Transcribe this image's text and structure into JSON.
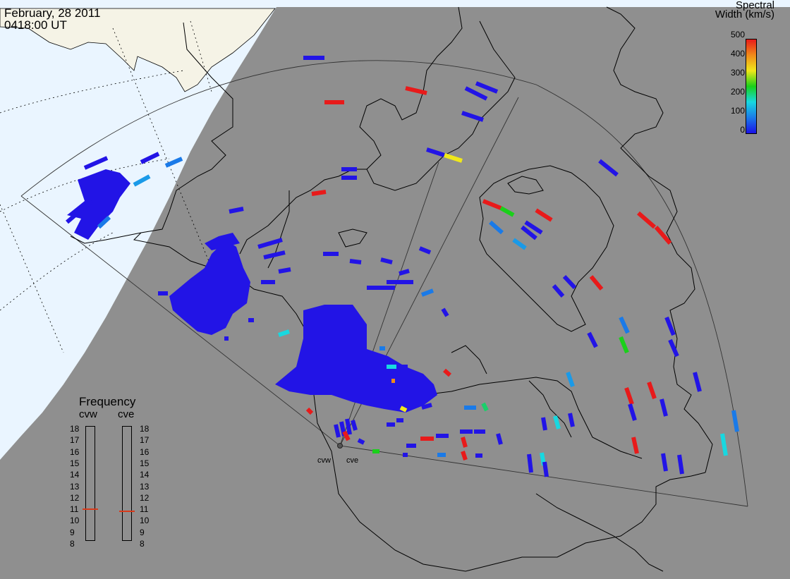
{
  "header": {
    "date": "February, 28 2011",
    "time": "0418:00 UT"
  },
  "colorbar": {
    "title_line1": "Spectral",
    "title_line2": "Width (km/s)",
    "ticks": [
      "500",
      "400",
      "300",
      "200",
      "100",
      "0"
    ],
    "range": [
      0,
      500
    ],
    "colors": [
      "#1a12e8",
      "#1a7ae8",
      "#18d8e0",
      "#1ad01a",
      "#f0e81a",
      "#f08a1a",
      "#e81a1a"
    ]
  },
  "frequency_panel": {
    "title": "Frequency",
    "radars": [
      {
        "name": "cvw",
        "value_mhz": 11
      },
      {
        "name": "cve",
        "value_mhz": 11
      }
    ],
    "scale": [
      "18",
      "17",
      "16",
      "15",
      "14",
      "13",
      "12",
      "11",
      "10",
      "9",
      "8"
    ]
  },
  "radar_sites": [
    "cvw",
    "cve"
  ],
  "map_colors": {
    "night_shade": "#8f8f8f",
    "day_ocean": "#eaf5ff",
    "day_land": "#f5f3e6",
    "coastline": "#000000",
    "frequency_marker": "#d83a1a"
  }
}
